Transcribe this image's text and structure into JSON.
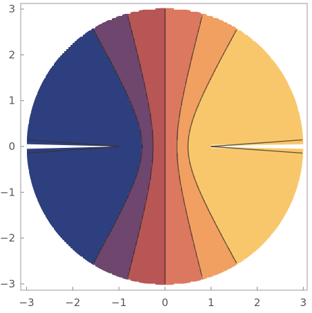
{
  "chart_data": {
    "type": "contour",
    "title": "",
    "xlabel": "",
    "ylabel": "",
    "xlim": [
      -3,
      3
    ],
    "ylim": [
      -3,
      3
    ],
    "x_ticks": [
      -3,
      -2,
      -1,
      0,
      1,
      2,
      3
    ],
    "y_ticks": [
      -3,
      -2,
      -1,
      0,
      1,
      2,
      3
    ],
    "x_tick_labels": [
      "−3",
      "−2",
      "−1",
      "0",
      "1",
      "2",
      "3"
    ],
    "y_tick_labels": [
      "−3",
      "−2",
      "−1",
      "0",
      "1",
      "2",
      "3"
    ],
    "region": "disk of radius 3 centered at origin",
    "branch_cuts": [
      [
        -3,
        -1
      ],
      [
        1,
        3
      ]
    ],
    "contour_levels": [
      -0.5,
      -0.25,
      0,
      0.25,
      0.5
    ],
    "bands": [
      {
        "range": "< -0.5",
        "color": "#2e3f7f"
      },
      {
        "range": "-0.5 to -0.25",
        "color": "#6e466e"
      },
      {
        "range": "-0.25 to 0",
        "color": "#b85656"
      },
      {
        "range": "0 to 0.25",
        "color": "#dc7860"
      },
      {
        "range": "0.25 to 0.5",
        "color": "#f1a062"
      },
      {
        "range": "0.5 to 0.75",
        "color": "#f9c76b"
      },
      {
        "range": "> 0.75",
        "color": "#fde3a6"
      }
    ],
    "grid": false
  }
}
